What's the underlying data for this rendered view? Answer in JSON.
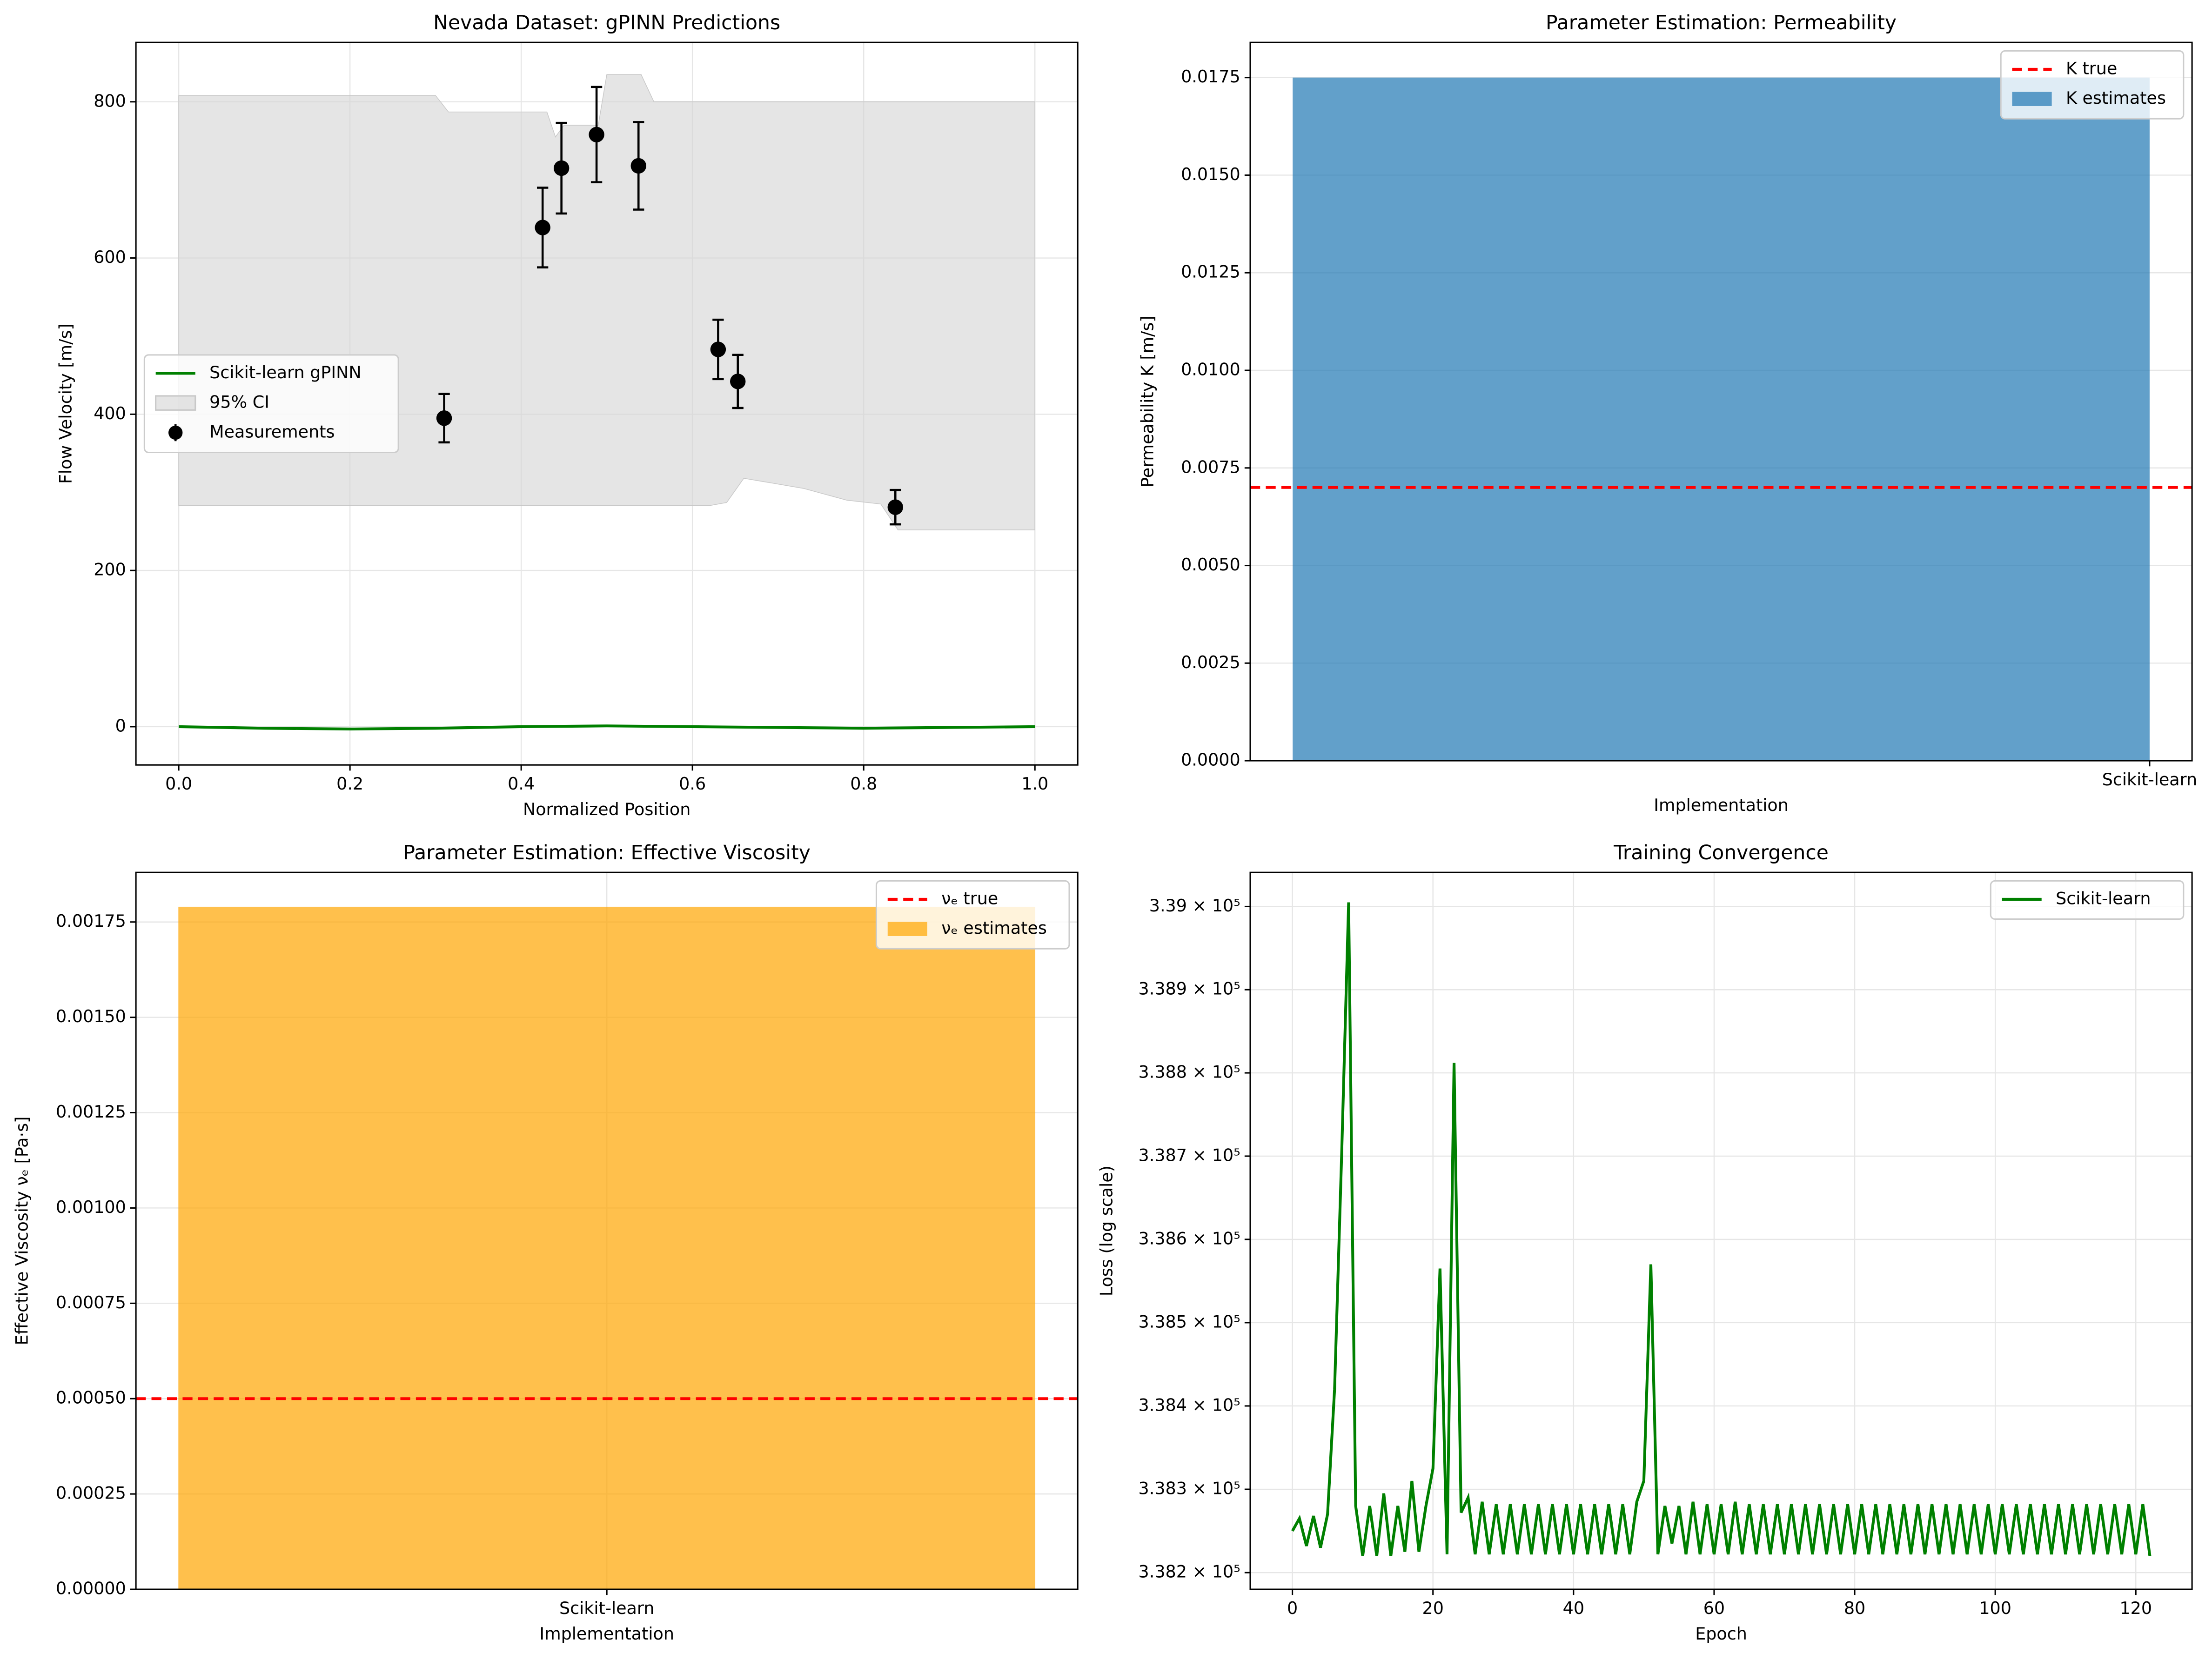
{
  "chart_data": [
    {
      "type": "line",
      "title": "Nevada Dataset: gPINN Predictions",
      "xlabel": "Normalized Position",
      "ylabel": "Flow Velocity [m/s]",
      "xlim": [
        -0.05,
        1.05
      ],
      "ylim": [
        -49,
        876
      ],
      "xticks": [
        {
          "value": 0,
          "label": "0.0"
        },
        {
          "value": 0.2,
          "label": "0.2"
        },
        {
          "value": 0.4,
          "label": "0.4"
        },
        {
          "value": 0.6,
          "label": "0.6"
        },
        {
          "value": 0.8,
          "label": "0.8"
        },
        {
          "value": 1,
          "label": "1.0"
        }
      ],
      "yticks": [
        0,
        200,
        400,
        600,
        800
      ],
      "grid": true,
      "legend": "center left",
      "series": [
        {
          "name": "Scikit-learn gPINN",
          "color": "#008000",
          "x": [
            0,
            0.1,
            0.2,
            0.3,
            0.4,
            0.5,
            0.6,
            0.7,
            0.8,
            0.9,
            1
          ],
          "values": [
            0,
            -2,
            -3,
            -2,
            0,
            1,
            0,
            -1,
            -2,
            -1,
            0
          ]
        }
      ],
      "band": {
        "name": "95% CI",
        "color": "#d3d3d3",
        "x": [
          0,
          0.3,
          0.315,
          0.43,
          0.44,
          0.45,
          0.49,
          0.5,
          0.54,
          0.555,
          0.62,
          0.64,
          0.66,
          0.73,
          0.78,
          0.82,
          0.84,
          1
        ],
        "upper": [
          808,
          808,
          787,
          787,
          755,
          770,
          770,
          835,
          835,
          800,
          800,
          800,
          800,
          800,
          800,
          800,
          800,
          800
        ],
        "lower": [
          283,
          283,
          283,
          283,
          283,
          283,
          283,
          283,
          283,
          283,
          283,
          287,
          318,
          305,
          290,
          285,
          252,
          252
        ]
      },
      "measurements": {
        "name": "Measurements",
        "color": "#000000",
        "x": [
          0.31,
          0.425,
          0.447,
          0.488,
          0.537,
          0.63,
          0.653,
          0.837
        ],
        "values": [
          395,
          639,
          715,
          758,
          718,
          483,
          442,
          281
        ],
        "errors": [
          31,
          51,
          58,
          61,
          56,
          38,
          34,
          22
        ]
      }
    },
    {
      "type": "bar",
      "title": "Parameter Estimation: Permeability",
      "xlabel": "Implementation",
      "ylabel": "Permeability K [m/s]",
      "categories": [
        "Scikit-learn"
      ],
      "ylim": [
        0,
        0.0184
      ],
      "yticks": [
        {
          "value": 0,
          "label": "0.0000"
        },
        {
          "value": 0.0025,
          "label": "0.0025"
        },
        {
          "value": 0.005,
          "label": "0.0050"
        },
        {
          "value": 0.0075,
          "label": "0.0075"
        },
        {
          "value": 0.01,
          "label": "0.0100"
        },
        {
          "value": 0.0125,
          "label": "0.0125"
        },
        {
          "value": 0.015,
          "label": "0.0150"
        },
        {
          "value": 0.0175,
          "label": "0.0175"
        }
      ],
      "grid": true,
      "legend": "upper right",
      "reference": {
        "name": "K true",
        "color": "#ff0000",
        "value": 0.007
      },
      "series": [
        {
          "name": "K estimates",
          "color": "#1f77b4",
          "values": [
            0.0175
          ]
        }
      ]
    },
    {
      "type": "bar",
      "title": "Parameter Estimation: Effective Viscosity",
      "xlabel": "Implementation",
      "ylabel": "Effective Viscosity νₑ [Pa·s]",
      "categories": [
        "Scikit-learn"
      ],
      "ylim": [
        0,
        0.00188
      ],
      "yticks": [
        {
          "value": 0,
          "label": "0.00000"
        },
        {
          "value": 0.00025,
          "label": "0.00025"
        },
        {
          "value": 0.0005,
          "label": "0.00050"
        },
        {
          "value": 0.00075,
          "label": "0.00075"
        },
        {
          "value": 0.001,
          "label": "0.00100"
        },
        {
          "value": 0.00125,
          "label": "0.00125"
        },
        {
          "value": 0.0015,
          "label": "0.00150"
        },
        {
          "value": 0.00175,
          "label": "0.00175"
        }
      ],
      "grid": true,
      "legend": "upper right",
      "reference": {
        "name": "νₑ true",
        "color": "#ff0000",
        "value": 0.0005
      },
      "series": [
        {
          "name": "νₑ estimates",
          "color": "#ffa500",
          "values": [
            0.00179
          ]
        }
      ]
    },
    {
      "type": "line",
      "title": "Training Convergence",
      "xlabel": "Epoch",
      "ylabel": "Loss (log scale)",
      "xlim": [
        -6,
        128
      ],
      "ylim": [
        338180,
        339041
      ],
      "log_scale": true,
      "xticks": [
        0,
        20,
        40,
        60,
        80,
        100,
        120
      ],
      "yticks": [
        {
          "value": 338200,
          "label": "3.382 × 10⁵"
        },
        {
          "value": 338300,
          "label": "3.383 × 10⁵"
        },
        {
          "value": 338400,
          "label": "3.384 × 10⁵"
        },
        {
          "value": 338500,
          "label": "3.385 × 10⁵"
        },
        {
          "value": 338600,
          "label": "3.386 × 10⁵"
        },
        {
          "value": 338700,
          "label": "3.387 × 10⁵"
        },
        {
          "value": 338800,
          "label": "3.388 × 10⁵"
        },
        {
          "value": 338900,
          "label": "3.389 × 10⁵"
        },
        {
          "value": 339000,
          "label": "3.39 × 10⁵"
        }
      ],
      "grid": true,
      "legend": "upper right",
      "series": [
        {
          "name": "Scikit-learn",
          "color": "#008000",
          "x": [
            0,
            1,
            2,
            3,
            4,
            5,
            6,
            7,
            8,
            9,
            10,
            11,
            12,
            13,
            14,
            15,
            16,
            17,
            18,
            19,
            20,
            21,
            22,
            23,
            24,
            25,
            26,
            27,
            28,
            29,
            30,
            31,
            32,
            33,
            34,
            35,
            36,
            37,
            38,
            39,
            40,
            41,
            42,
            43,
            44,
            45,
            46,
            47,
            48,
            49,
            50,
            51,
            52,
            53,
            54,
            55,
            56,
            57,
            58,
            59,
            60,
            61,
            62,
            63,
            64,
            65,
            66,
            67,
            68,
            69,
            70,
            71,
            72,
            73,
            74,
            75,
            76,
            77,
            78,
            79,
            80,
            81,
            82,
            83,
            84,
            85,
            86,
            87,
            88,
            89,
            90,
            91,
            92,
            93,
            94,
            95,
            96,
            97,
            98,
            99,
            100,
            101,
            102,
            103,
            104,
            105,
            106,
            107,
            108,
            109,
            110,
            111,
            112,
            113,
            114,
            115,
            116,
            117,
            118,
            119,
            120,
            121,
            122
          ],
          "values": [
            338250,
            338265,
            338232,
            338268,
            338230,
            338270,
            338420,
            338700,
            339005,
            338280,
            338220,
            338280,
            338220,
            338295,
            338220,
            338280,
            338225,
            338310,
            338225,
            338280,
            338325,
            338565,
            338222,
            338812,
            338272,
            338290,
            338222,
            338285,
            338222,
            338282,
            338222,
            338282,
            338222,
            338282,
            338222,
            338282,
            338222,
            338282,
            338222,
            338282,
            338222,
            338282,
            338222,
            338282,
            338222,
            338282,
            338222,
            338282,
            338222,
            338285,
            338310,
            338570,
            338222,
            338280,
            338235,
            338280,
            338222,
            338285,
            338222,
            338282,
            338222,
            338282,
            338222,
            338285,
            338222,
            338282,
            338222,
            338282,
            338222,
            338282,
            338222,
            338282,
            338222,
            338282,
            338222,
            338282,
            338222,
            338282,
            338222,
            338282,
            338222,
            338282,
            338222,
            338282,
            338222,
            338282,
            338222,
            338282,
            338222,
            338282,
            338222,
            338282,
            338222,
            338282,
            338222,
            338282,
            338222,
            338282,
            338222,
            338282,
            338222,
            338282,
            338222,
            338282,
            338222,
            338282,
            338222,
            338282,
            338222,
            338282,
            338222,
            338282,
            338222,
            338282,
            338222,
            338282,
            338222,
            338282,
            338222,
            338282,
            338222,
            338282,
            338220
          ]
        }
      ]
    }
  ]
}
